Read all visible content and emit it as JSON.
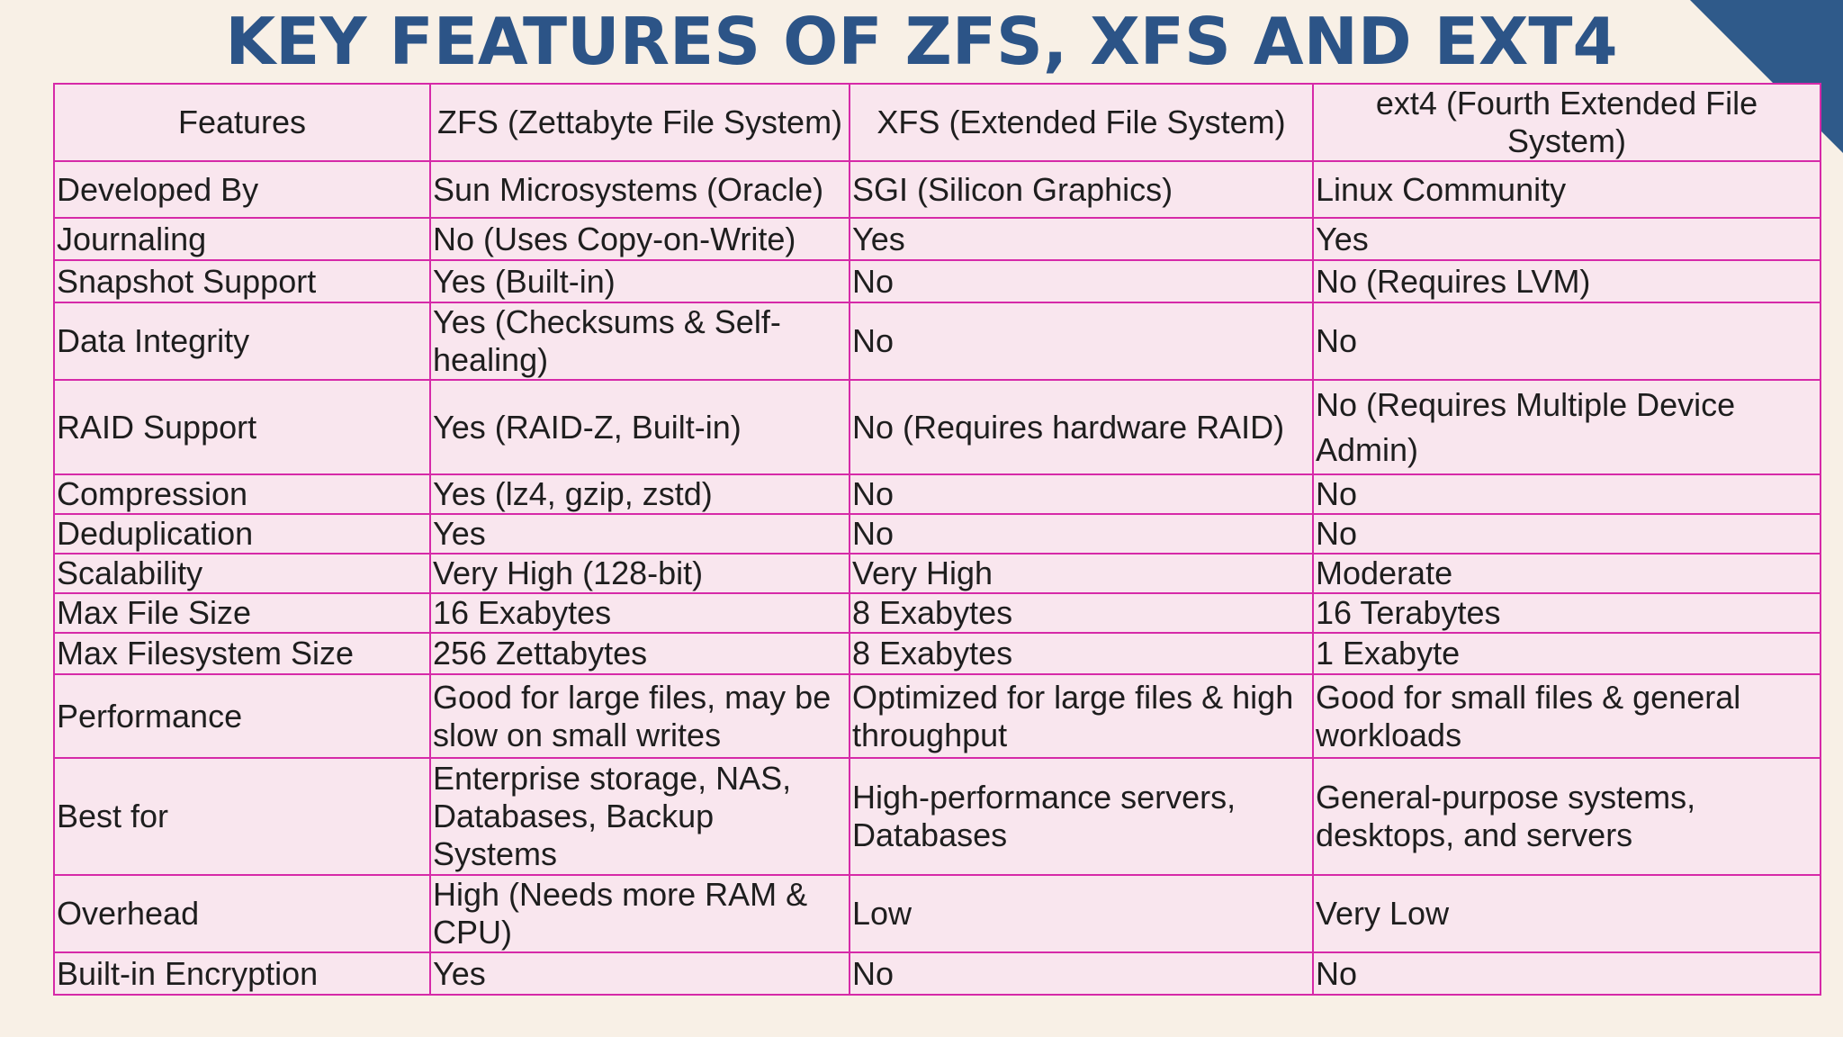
{
  "slide": {
    "title": "KEY FEATURES OF ZFS, XFS AND EXT4"
  },
  "colors": {
    "title": "#2c5487",
    "background": "#f8f0e6",
    "cell_fill": "#f9e6ee",
    "border": "#d62aa8",
    "corner_accent": "#2f5a8a"
  },
  "table": {
    "headers": [
      "Features",
      "ZFS (Zettabyte File System)",
      "XFS (Extended File System)",
      "ext4 (Fourth Extended File System)"
    ],
    "rows": [
      [
        "Developed By",
        "Sun Microsystems (Oracle)",
        "SGI (Silicon Graphics)",
        "Linux Community"
      ],
      [
        "Journaling",
        "No (Uses Copy-on-Write)",
        "Yes",
        "Yes"
      ],
      [
        "Snapshot Support",
        "Yes (Built-in)",
        "No",
        "No (Requires LVM)"
      ],
      [
        "Data Integrity",
        "Yes (Checksums & Self-healing)",
        "No",
        "No"
      ],
      [
        "RAID Support",
        "Yes (RAID-Z, Built-in)",
        "No (Requires hardware RAID)",
        "No (Requires Multiple Device Admin)"
      ],
      [
        "Compression",
        "Yes (lz4, gzip, zstd)",
        "No",
        "No"
      ],
      [
        "Deduplication",
        "Yes",
        "No",
        "No"
      ],
      [
        "Scalability",
        "Very High (128-bit)",
        "Very High",
        "Moderate"
      ],
      [
        "Max File Size",
        "16 Exabytes",
        "8 Exabytes",
        "16 Terabytes"
      ],
      [
        "Max Filesystem Size",
        "256 Zettabytes",
        "8 Exabytes",
        "1 Exabyte"
      ],
      [
        "Performance",
        "Good for large files, may be slow on small writes",
        "Optimized for large files & high throughput",
        "Good for small files & general workloads"
      ],
      [
        "Best for",
        "Enterprise storage, NAS, Databases, Backup Systems",
        "High-performance servers, Databases",
        "General-purpose systems, desktops, and servers"
      ],
      [
        "Overhead",
        "High (Needs more RAM & CPU)",
        "Low",
        "Very Low"
      ],
      [
        "Built-in Encryption",
        "Yes",
        "No",
        "No"
      ]
    ]
  }
}
